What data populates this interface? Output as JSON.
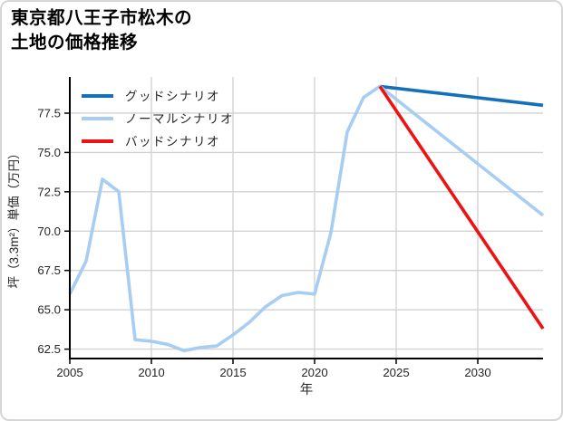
{
  "title": {
    "line1": "東京都八王子市松木の",
    "line2": "土地の価格推移"
  },
  "chart_data": {
    "type": "line",
    "title": "東京都八王子市松木の土地の価格推移",
    "xlabel": "年",
    "ylabel": "坪（3.3m²）単価（万円）",
    "xlim": [
      2005,
      2034
    ],
    "ylim": [
      61.9,
      79.8
    ],
    "x_ticks": [
      2005,
      2010,
      2015,
      2020,
      2025,
      2030
    ],
    "y_ticks": [
      62.5,
      65.0,
      67.5,
      70.0,
      72.5,
      75.0,
      77.5
    ],
    "grid": true,
    "legend_position": "upper-left",
    "series": [
      {
        "name": "グッドシナリオ",
        "key": "good-scenario",
        "color": "#1470b8",
        "x": [
          2024,
          2034
        ],
        "values": [
          79.2,
          78.0
        ]
      },
      {
        "name": "ノーマルシナリオ",
        "key": "normal-scenario",
        "color": "#a8cdf3",
        "x": [
          2005,
          2006,
          2007,
          2008,
          2009,
          2010,
          2011,
          2012,
          2013,
          2014,
          2015,
          2016,
          2017,
          2018,
          2019,
          2020,
          2021,
          2022,
          2023,
          2024,
          2034
        ],
        "values": [
          66.0,
          68.1,
          73.3,
          72.5,
          63.1,
          63.0,
          62.8,
          62.4,
          62.6,
          62.7,
          63.4,
          64.2,
          65.2,
          65.9,
          66.1,
          66.0,
          69.9,
          76.3,
          78.5,
          79.2,
          71.0
        ]
      },
      {
        "name": "バッドシナリオ",
        "key": "bad-scenario",
        "color": "#ec1313",
        "x": [
          2024,
          2034
        ],
        "values": [
          79.2,
          63.8
        ]
      }
    ]
  },
  "style": {
    "grid_color": "#d2d2d2",
    "axis_color": "#000000",
    "tick_label_color": "#262626",
    "legend_text_color": "#262626",
    "line_width": 3.6
  }
}
